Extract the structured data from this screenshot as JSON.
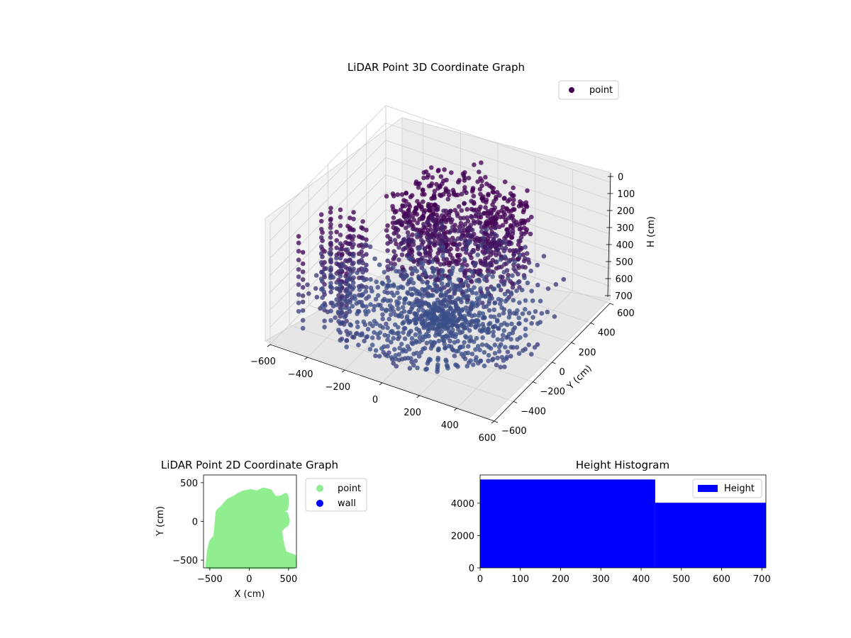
{
  "figure": {
    "background": "#ffffff"
  },
  "chart_data": [
    {
      "id": "chart3d",
      "type": "scatter",
      "title": "LiDAR Point 3D Coordinate Graph",
      "xlabel": "",
      "ylabel": "Y (cm)",
      "zlabel": "H (cm)",
      "xticks": [
        -600,
        -400,
        -200,
        0,
        200,
        400,
        600
      ],
      "xtick_labels": [
        "−600",
        "−400",
        "−200",
        "0",
        "200",
        "400",
        "600"
      ],
      "yticks": [
        -600,
        -400,
        -200,
        0,
        200,
        400,
        600
      ],
      "ytick_labels": [
        "−600",
        "−400",
        "−200",
        "0",
        "200",
        "400",
        "600"
      ],
      "zticks": [
        0,
        100,
        200,
        300,
        400,
        500,
        600,
        700
      ],
      "ztick_labels": [
        "0",
        "100",
        "200",
        "300",
        "400",
        "500",
        "600",
        "700"
      ],
      "xlim": [
        -600,
        600
      ],
      "ylim": [
        -600,
        600
      ],
      "zlim": [
        700,
        0
      ],
      "grid": true,
      "legend": {
        "position": "top-right",
        "entries": [
          {
            "label": "point",
            "color": "#440154"
          }
        ]
      },
      "colors": {
        "near_floor": "#3b528b",
        "near_ceiling": "#440154"
      },
      "series": [
        {
          "name": "point"
        }
      ]
    },
    {
      "id": "chart2d",
      "type": "scatter",
      "title": "LiDAR Point 2D Coordinate Graph",
      "xlabel": "X (cm)",
      "ylabel": "Y (cm)",
      "xticks": [
        -500,
        0,
        500
      ],
      "xtick_labels": [
        "−500",
        "0",
        "500"
      ],
      "yticks": [
        500,
        0,
        -500
      ],
      "ytick_labels": [
        "500",
        "0",
        "−500"
      ],
      "xlim": [
        -580,
        600
      ],
      "ylim": [
        -600,
        600
      ],
      "legend": {
        "position": "outside-right",
        "entries": [
          {
            "label": "point",
            "color": "#90ee90"
          },
          {
            "label": "wall",
            "color": "#0000ff"
          }
        ]
      },
      "series": [
        {
          "name": "point",
          "color": "#90ee90",
          "outline": [
            [
              -520,
              -580
            ],
            [
              -500,
              -380
            ],
            [
              -470,
              -260
            ],
            [
              -420,
              -200
            ],
            [
              -400,
              10
            ],
            [
              -390,
              120
            ],
            [
              -330,
              180
            ],
            [
              -260,
              260
            ],
            [
              -180,
              300
            ],
            [
              -120,
              340
            ],
            [
              -80,
              360
            ],
            [
              20,
              380
            ],
            [
              100,
              360
            ],
            [
              180,
              400
            ],
            [
              260,
              380
            ],
            [
              320,
              290
            ],
            [
              420,
              300
            ],
            [
              460,
              330
            ],
            [
              470,
              260
            ],
            [
              460,
              170
            ],
            [
              390,
              180
            ],
            [
              380,
              120
            ],
            [
              460,
              90
            ],
            [
              480,
              10
            ],
            [
              470,
              -30
            ],
            [
              430,
              -60
            ],
            [
              380,
              -120
            ],
            [
              410,
              -300
            ],
            [
              440,
              -410
            ],
            [
              500,
              -440
            ],
            [
              560,
              -460
            ],
            [
              570,
              -530
            ],
            [
              560,
              -580
            ]
          ]
        },
        {
          "name": "wall",
          "color": "#0000ff"
        }
      ]
    },
    {
      "id": "hist",
      "type": "bar",
      "title": "Height Histogram",
      "xlabel": "",
      "ylabel": "",
      "xticks": [
        0,
        100,
        200,
        300,
        400,
        500,
        600,
        700
      ],
      "yticks": [
        0,
        2000,
        4000
      ],
      "xlim": [
        0,
        710
      ],
      "ylim": [
        0,
        5750
      ],
      "bars": [
        {
          "x0": 0,
          "x1": 435,
          "value": 5470
        },
        {
          "x0": 435,
          "x1": 710,
          "value": 4030
        }
      ],
      "legend": {
        "position": "top-right",
        "entries": [
          {
            "label": "Height",
            "color": "#0000ff"
          }
        ]
      },
      "color": "#0000ff"
    }
  ]
}
